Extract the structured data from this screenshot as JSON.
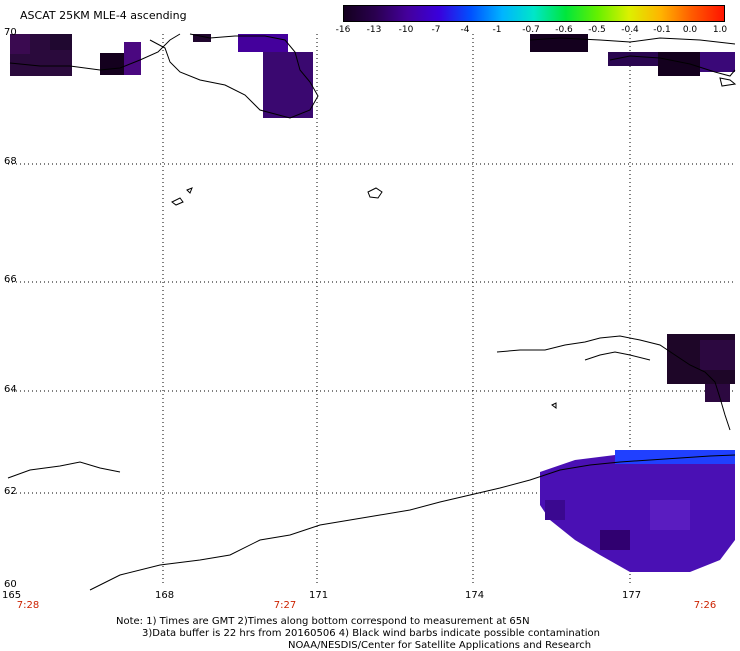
{
  "title": "ASCAT 25KM MLE-4 ascending",
  "colorbar": {
    "labels": [
      "-16",
      "-13",
      "-10",
      "-7",
      "-4",
      "-1",
      "-0.7",
      "-0.6",
      "-0.5",
      "-0.4",
      "-0.1",
      "0.0",
      "1.0"
    ],
    "colors": [
      "#14001e",
      "#2a0050",
      "#44009c",
      "#3a00dc",
      "#0050ff",
      "#00b4ff",
      "#00e6c8",
      "#00e63c",
      "#64f000",
      "#dcf000",
      "#ffb400",
      "#ff5a00",
      "#ff1400"
    ]
  },
  "axes": {
    "lat_labels": [
      "70",
      "68",
      "66",
      "64",
      "62",
      "60"
    ],
    "lon_labels": [
      "165",
      "168",
      "171",
      "174",
      "177"
    ],
    "lat_range": [
      60,
      70
    ],
    "lon_range": [
      165,
      178.5
    ]
  },
  "times": [
    "7:28",
    "7:27",
    "7:26"
  ],
  "notes": [
    "Note: 1) Times are GMT 2)Times along bottom correspond to measurement at 65N",
    "3)Data buffer is 22 hrs from 20160506 4) Black wind barbs indicate possible contamination",
    "NOAA/NESDIS/Center for Satellite Applications and Research"
  ]
}
